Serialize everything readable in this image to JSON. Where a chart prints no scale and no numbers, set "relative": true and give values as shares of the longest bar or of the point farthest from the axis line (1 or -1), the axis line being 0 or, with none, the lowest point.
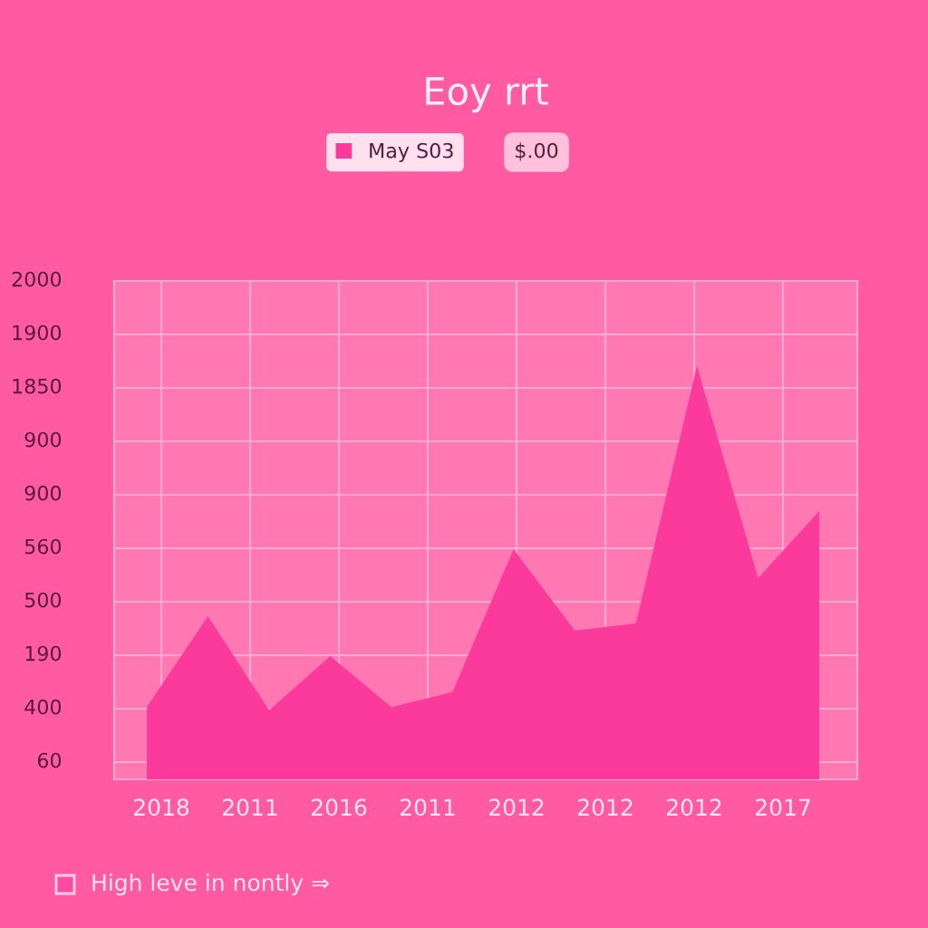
{
  "chart_data": {
    "type": "area",
    "title": "Eoy rrt",
    "relative": true,
    "categories": [
      null,
      null,
      null,
      null,
      null,
      null,
      null,
      null,
      null,
      null,
      null,
      null
    ],
    "series": [
      {
        "name": "May S03",
        "color": "#fb3a9c",
        "values": [
          0.175,
          0.395,
          0.167,
          0.298,
          0.175,
          0.211,
          0.557,
          0.36,
          0.377,
          1.0,
          0.487,
          0.649
        ]
      }
    ],
    "grid": true,
    "legend": "top",
    "annotations": [
      "$.00",
      "High leve in nontly ⇒",
      "2000",
      "1900",
      "1850",
      "900",
      "900",
      "560",
      "500",
      "190",
      "400",
      "60",
      "2018",
      "2011",
      "2016",
      "2011",
      "2012",
      "2012",
      "2012",
      "2017"
    ]
  }
}
